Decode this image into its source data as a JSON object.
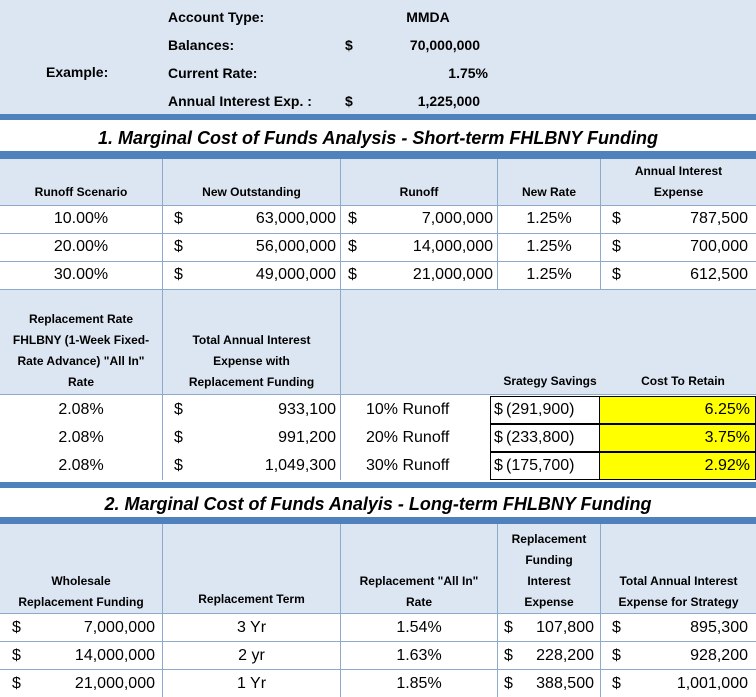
{
  "example": {
    "label": "Example:",
    "rows": [
      {
        "label": "Account Type:",
        "currency": "",
        "value": "MMDA"
      },
      {
        "label": "Balances:",
        "currency": "$",
        "value": "70,000,000"
      },
      {
        "label": "Current Rate:",
        "currency": "",
        "value": "1.75%"
      },
      {
        "label": "Annual Interest Exp. :",
        "currency": "$",
        "value": "1,225,000"
      }
    ]
  },
  "section1": {
    "title": "1. Marginal Cost of Funds Analysis - Short-term FHLBNY Funding",
    "headers": {
      "runoff_scenario": "Runoff Scenario",
      "new_outstanding": "New Outstanding",
      "runoff": "Runoff",
      "new_rate": "New Rate",
      "annual_interest_1": "Annual Interest",
      "annual_interest_2": "Expense"
    },
    "rows": [
      {
        "scenario": "10.00%",
        "new_outstanding": "63,000,000",
        "runoff": "7,000,000",
        "new_rate": "1.25%",
        "expense": "787,500"
      },
      {
        "scenario": "20.00%",
        "new_outstanding": "56,000,000",
        "runoff": "14,000,000",
        "new_rate": "1.25%",
        "expense": "700,000"
      },
      {
        "scenario": "30.00%",
        "new_outstanding": "49,000,000",
        "runoff": "21,000,000",
        "new_rate": "1.25%",
        "expense": "612,500"
      }
    ],
    "headers2": {
      "replacement_rate": [
        "Replacement Rate",
        "FHLBNY (1-Week Fixed-",
        "Rate Advance) \"All In\"",
        "Rate"
      ],
      "total_annual": [
        "Total Annual Interest",
        "Expense with",
        "Replacement Funding"
      ],
      "strategy_savings": "Srategy Savings",
      "cost_to_retain": "Cost To Retain"
    },
    "rows2": [
      {
        "rate": "2.08%",
        "total": "933,100",
        "runoff_label": "10% Runoff",
        "savings": "(291,900)",
        "cost": "6.25%"
      },
      {
        "rate": "2.08%",
        "total": "991,200",
        "runoff_label": "20% Runoff",
        "savings": "(233,800)",
        "cost": "3.75%"
      },
      {
        "rate": "2.08%",
        "total": "1,049,300",
        "runoff_label": "30% Runoff",
        "savings": "(175,700)",
        "cost": "2.92%"
      }
    ]
  },
  "section2": {
    "title": "2. Marginal Cost of Funds Analyis - Long-term FHLBNY Funding",
    "headers": {
      "wholesale": [
        "Wholesale",
        "Replacement Funding"
      ],
      "term": "Replacement Term",
      "rate": [
        "Replacement \"All In\"",
        "Rate"
      ],
      "interest": [
        "Replacement",
        "Funding",
        "Interest",
        "Expense"
      ],
      "total": [
        "Total Annual Interest",
        "Expense for Strategy"
      ]
    },
    "rows": [
      {
        "funding": "7,000,000",
        "term": "3 Yr",
        "rate": "1.54%",
        "interest": "107,800",
        "total": "895,300"
      },
      {
        "funding": "14,000,000",
        "term": "2 yr",
        "rate": "1.63%",
        "interest": "228,200",
        "total": "928,200"
      },
      {
        "funding": "21,000,000",
        "term": "1 Yr",
        "rate": "1.85%",
        "interest": "388,500",
        "total": "1,001,000"
      }
    ]
  },
  "currency_symbol": "$",
  "colors": {
    "band": "#dce6f2",
    "accent": "#4f81bd",
    "highlight": "#ffff00"
  }
}
